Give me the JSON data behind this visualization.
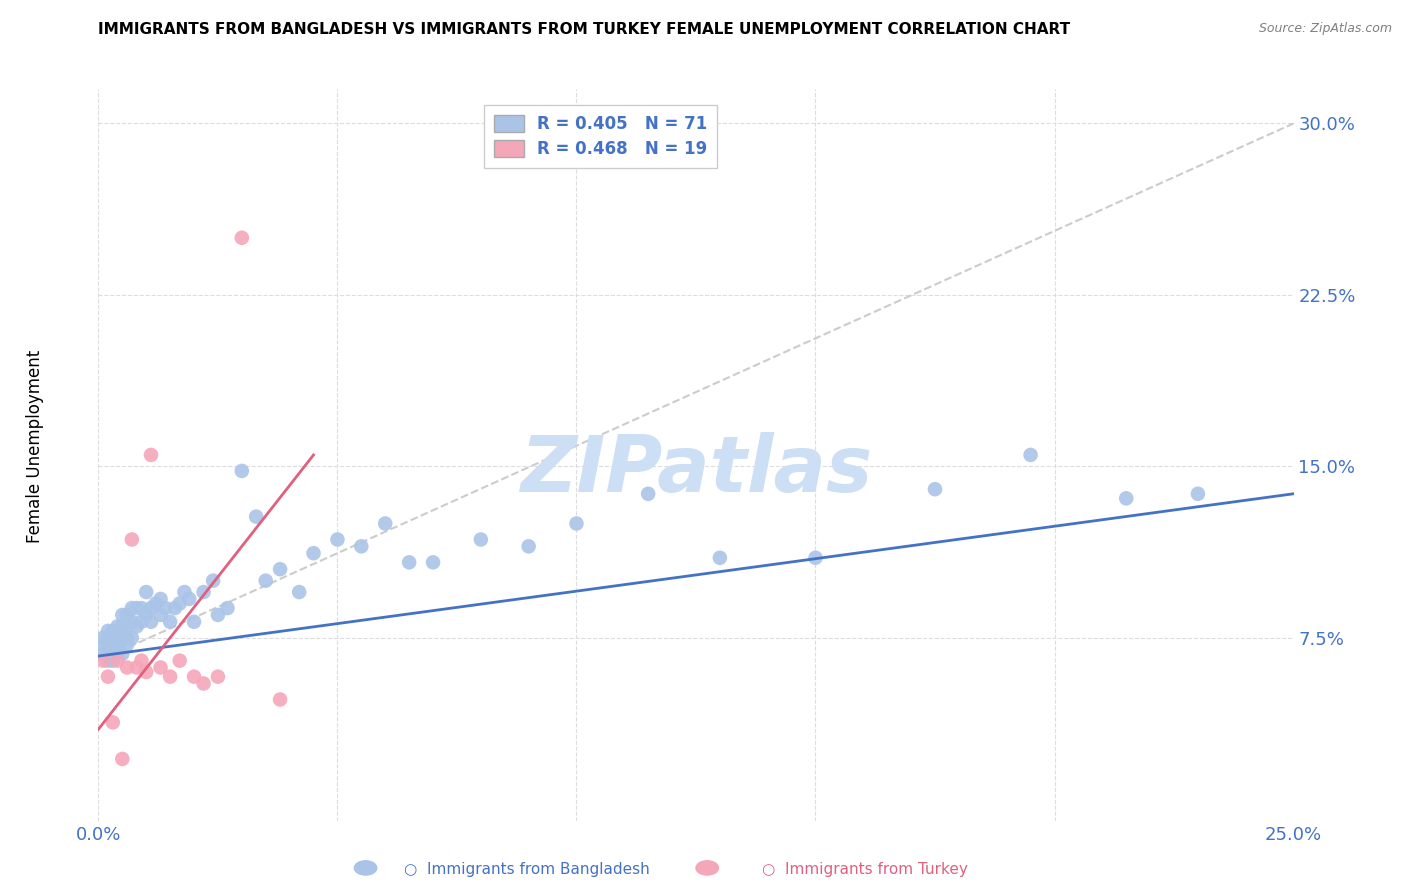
{
  "title": "IMMIGRANTS FROM BANGLADESH VS IMMIGRANTS FROM TURKEY FEMALE UNEMPLOYMENT CORRELATION CHART",
  "source": "Source: ZipAtlas.com",
  "ylabel": "Female Unemployment",
  "xlim": [
    0,
    0.25
  ],
  "ylim": [
    -0.005,
    0.315
  ],
  "xticks": [
    0.0,
    0.05,
    0.1,
    0.15,
    0.2,
    0.25
  ],
  "xticklabels": [
    "0.0%",
    "",
    "",
    "",
    "",
    "25.0%"
  ],
  "yticks": [
    0.075,
    0.15,
    0.225,
    0.3
  ],
  "yticklabels": [
    "7.5%",
    "15.0%",
    "22.5%",
    "30.0%"
  ],
  "bangladesh_color": "#aac4e8",
  "turkey_color": "#f4a7b9",
  "bangladesh_line_color": "#4472c4",
  "turkey_line_color": "#e06080",
  "diag_line_color": "#cccccc",
  "tick_color": "#4472c4",
  "watermark_color": "#ccdff5",
  "bangladesh_x": [
    0.001,
    0.001,
    0.001,
    0.002,
    0.002,
    0.002,
    0.002,
    0.002,
    0.003,
    0.003,
    0.003,
    0.003,
    0.003,
    0.004,
    0.004,
    0.004,
    0.004,
    0.005,
    0.005,
    0.005,
    0.005,
    0.006,
    0.006,
    0.006,
    0.006,
    0.007,
    0.007,
    0.007,
    0.008,
    0.008,
    0.009,
    0.009,
    0.01,
    0.01,
    0.011,
    0.011,
    0.012,
    0.013,
    0.013,
    0.014,
    0.015,
    0.016,
    0.017,
    0.018,
    0.019,
    0.02,
    0.022,
    0.024,
    0.025,
    0.027,
    0.03,
    0.033,
    0.035,
    0.038,
    0.042,
    0.045,
    0.05,
    0.055,
    0.06,
    0.065,
    0.07,
    0.08,
    0.09,
    0.1,
    0.115,
    0.13,
    0.15,
    0.175,
    0.195,
    0.215,
    0.23
  ],
  "bangladesh_y": [
    0.068,
    0.072,
    0.075,
    0.065,
    0.068,
    0.072,
    0.075,
    0.078,
    0.065,
    0.068,
    0.072,
    0.075,
    0.078,
    0.068,
    0.072,
    0.075,
    0.08,
    0.068,
    0.075,
    0.08,
    0.085,
    0.072,
    0.075,
    0.08,
    0.085,
    0.075,
    0.082,
    0.088,
    0.08,
    0.088,
    0.082,
    0.088,
    0.085,
    0.095,
    0.082,
    0.088,
    0.09,
    0.085,
    0.092,
    0.088,
    0.082,
    0.088,
    0.09,
    0.095,
    0.092,
    0.082,
    0.095,
    0.1,
    0.085,
    0.088,
    0.148,
    0.128,
    0.1,
    0.105,
    0.095,
    0.112,
    0.118,
    0.115,
    0.125,
    0.108,
    0.108,
    0.118,
    0.115,
    0.125,
    0.138,
    0.11,
    0.11,
    0.14,
    0.155,
    0.136,
    0.138
  ],
  "turkey_x": [
    0.001,
    0.002,
    0.003,
    0.004,
    0.005,
    0.006,
    0.007,
    0.008,
    0.009,
    0.01,
    0.011,
    0.013,
    0.015,
    0.017,
    0.02,
    0.022,
    0.025,
    0.03,
    0.038
  ],
  "turkey_y": [
    0.065,
    0.058,
    0.038,
    0.065,
    0.022,
    0.062,
    0.118,
    0.062,
    0.065,
    0.06,
    0.155,
    0.062,
    0.058,
    0.065,
    0.058,
    0.055,
    0.058,
    0.25,
    0.048
  ],
  "bangladesh_line_x": [
    0.0,
    0.25
  ],
  "bangladesh_line_y": [
    0.067,
    0.138
  ],
  "turkey_line_x": [
    0.0,
    0.045
  ],
  "turkey_line_y": [
    0.035,
    0.155
  ],
  "diag_line_x": [
    0.0,
    0.25
  ],
  "diag_line_y": [
    0.065,
    0.3
  ]
}
